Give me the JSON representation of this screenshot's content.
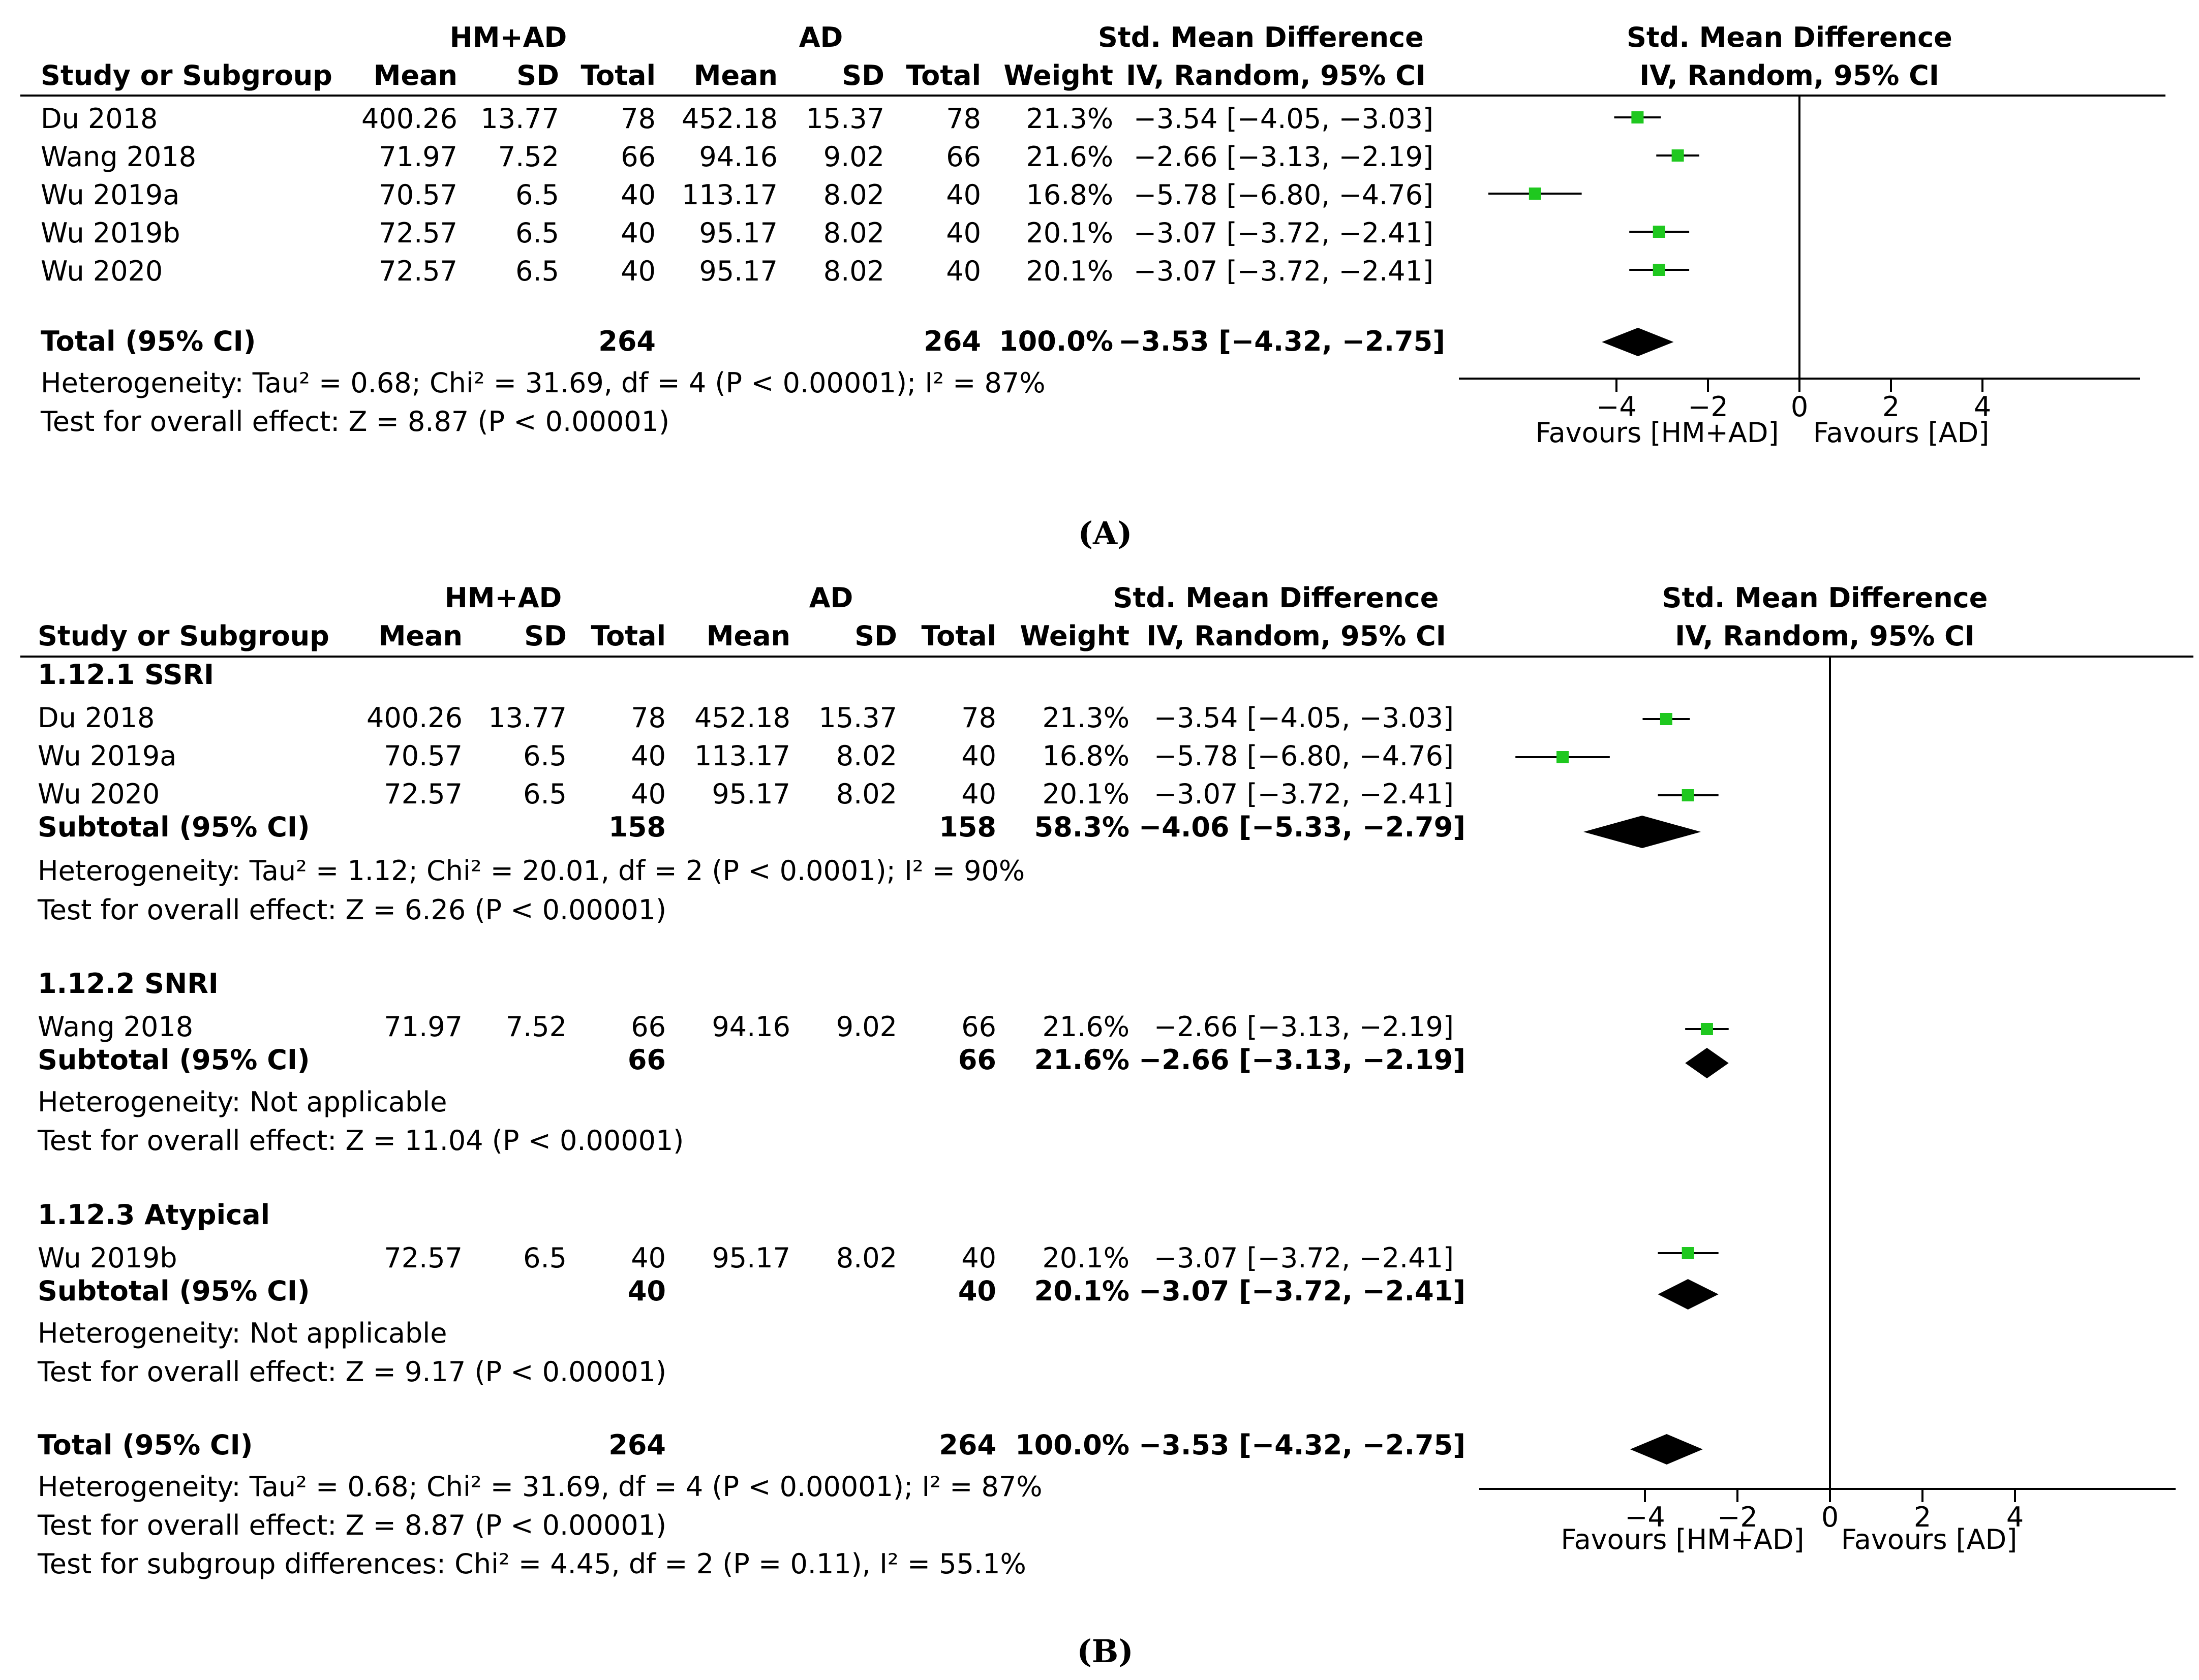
{
  "labels": {
    "group1": "HM+AD",
    "group2": "AD",
    "smd_header": "Std. Mean Difference",
    "ci_header": "IV, Random, 95% CI",
    "study_col": "Study or Subgroup",
    "mean_col": "Mean",
    "sd_col": "SD",
    "total_col": "Total",
    "weight_col": "Weight",
    "fav_left": "Favours [HM+AD]",
    "fav_right": "Favours [AD]"
  },
  "panelA": {
    "label": "(A)",
    "rows": [
      {
        "study": "Du 2018",
        "m1": "400.26",
        "sd1": "13.77",
        "n1": "78",
        "m2": "452.18",
        "sd2": "15.37",
        "n2": "78",
        "weight": "21.3%",
        "ci": "−3.54 [−4.05, −3.03]"
      },
      {
        "study": "Wang 2018",
        "m1": "71.97",
        "sd1": "7.52",
        "n1": "66",
        "m2": "94.16",
        "sd2": "9.02",
        "n2": "66",
        "weight": "21.6%",
        "ci": "−2.66 [−3.13, −2.19]"
      },
      {
        "study": "Wu 2019a",
        "m1": "70.57",
        "sd1": "6.5",
        "n1": "40",
        "m2": "113.17",
        "sd2": "8.02",
        "n2": "40",
        "weight": "16.8%",
        "ci": "−5.78 [−6.80, −4.76]"
      },
      {
        "study": "Wu 2019b",
        "m1": "72.57",
        "sd1": "6.5",
        "n1": "40",
        "m2": "95.17",
        "sd2": "8.02",
        "n2": "40",
        "weight": "20.1%",
        "ci": "−3.07 [−3.72, −2.41]"
      },
      {
        "study": "Wu 2020",
        "m1": "72.57",
        "sd1": "6.5",
        "n1": "40",
        "m2": "95.17",
        "sd2": "8.02",
        "n2": "40",
        "weight": "20.1%",
        "ci": "−3.07 [−3.72, −2.41]"
      }
    ],
    "total": {
      "label": "Total (95% CI)",
      "n1": "264",
      "n2": "264",
      "weight": "100.0%",
      "ci": "−3.53 [−4.32, −2.75]"
    },
    "het": "Heterogeneity: Tau² = 0.68; Chi² = 31.69, df = 4 (P < 0.00001); I² = 87%",
    "test": "Test for overall effect: Z = 8.87 (P < 0.00001)"
  },
  "panelB": {
    "label": "(B)",
    "g1": {
      "name": "1.12.1 SSRI",
      "rows": [
        {
          "study": "Du 2018",
          "m1": "400.26",
          "sd1": "13.77",
          "n1": "78",
          "m2": "452.18",
          "sd2": "15.37",
          "n2": "78",
          "weight": "21.3%",
          "ci": "−3.54 [−4.05, −3.03]"
        },
        {
          "study": "Wu 2019a",
          "m1": "70.57",
          "sd1": "6.5",
          "n1": "40",
          "m2": "113.17",
          "sd2": "8.02",
          "n2": "40",
          "weight": "16.8%",
          "ci": "−5.78 [−6.80, −4.76]"
        },
        {
          "study": "Wu 2020",
          "m1": "72.57",
          "sd1": "6.5",
          "n1": "40",
          "m2": "95.17",
          "sd2": "8.02",
          "n2": "40",
          "weight": "20.1%",
          "ci": "−3.07 [−3.72, −2.41]"
        }
      ],
      "subtotal": {
        "label": "Subtotal (95% CI)",
        "n1": "158",
        "n2": "158",
        "weight": "58.3%",
        "ci": "−4.06 [−5.33, −2.79]"
      },
      "het": "Heterogeneity: Tau² = 1.12; Chi² = 20.01, df = 2 (P < 0.0001); I² = 90%",
      "test": "Test for overall effect: Z = 6.26 (P < 0.00001)"
    },
    "g2": {
      "name": "1.12.2 SNRI",
      "rows": [
        {
          "study": "Wang 2018",
          "m1": "71.97",
          "sd1": "7.52",
          "n1": "66",
          "m2": "94.16",
          "sd2": "9.02",
          "n2": "66",
          "weight": "21.6%",
          "ci": "−2.66 [−3.13, −2.19]"
        }
      ],
      "subtotal": {
        "label": "Subtotal (95% CI)",
        "n1": "66",
        "n2": "66",
        "weight": "21.6%",
        "ci": "−2.66 [−3.13, −2.19]"
      },
      "het": "Heterogeneity: Not applicable",
      "test": "Test for overall effect: Z = 11.04 (P < 0.00001)"
    },
    "g3": {
      "name": "1.12.3 Atypical",
      "rows": [
        {
          "study": "Wu 2019b",
          "m1": "72.57",
          "sd1": "6.5",
          "n1": "40",
          "m2": "95.17",
          "sd2": "8.02",
          "n2": "40",
          "weight": "20.1%",
          "ci": "−3.07 [−3.72, −2.41]"
        }
      ],
      "subtotal": {
        "label": "Subtotal (95% CI)",
        "n1": "40",
        "n2": "40",
        "weight": "20.1%",
        "ci": "−3.07 [−3.72, −2.41]"
      },
      "het": "Heterogeneity: Not applicable",
      "test": "Test for overall effect: Z = 9.17 (P < 0.00001)"
    },
    "total": {
      "label": "Total (95% CI)",
      "n1": "264",
      "n2": "264",
      "weight": "100.0%",
      "ci": "−3.53 [−4.32, −2.75]"
    },
    "het": "Heterogeneity: Tau² = 0.68; Chi² = 31.69, df = 4 (P < 0.00001); I² = 87%",
    "test": "Test for overall effect: Z = 8.87 (P < 0.00001)",
    "subgroup_test": "Test for subgroup differences: Chi² = 4.45, df = 2 (P = 0.11), I² = 55.1%"
  },
  "chart_data": [
    {
      "type": "forest",
      "panel": "A",
      "title": "Std. Mean Difference",
      "subtitle": "IV, Random, 95% CI",
      "xlabel_left": "Favours [HM+AD]",
      "xlabel_right": "Favours [AD]",
      "xticks": [
        "−4",
        "−2",
        "0",
        "2",
        "4"
      ],
      "xtick_values": [
        -4,
        -2,
        0,
        2,
        4
      ],
      "xlim": [
        -7.5,
        7.5
      ],
      "studies": [
        {
          "name": "Du 2018",
          "est": -3.54,
          "lo": -4.05,
          "hi": -3.03,
          "weight": 21.3
        },
        {
          "name": "Wang 2018",
          "est": -2.66,
          "lo": -3.13,
          "hi": -2.19,
          "weight": 21.6
        },
        {
          "name": "Wu 2019a",
          "est": -5.78,
          "lo": -6.8,
          "hi": -4.76,
          "weight": 16.8
        },
        {
          "name": "Wu 2019b",
          "est": -3.07,
          "lo": -3.72,
          "hi": -2.41,
          "weight": 20.1
        },
        {
          "name": "Wu 2020",
          "est": -3.07,
          "lo": -3.72,
          "hi": -2.41,
          "weight": 20.1
        }
      ],
      "pooled": [
        {
          "name": "Total (95% CI)",
          "est": -3.53,
          "lo": -4.32,
          "hi": -2.75
        }
      ],
      "marker_color": "#1fc81f"
    },
    {
      "type": "forest",
      "panel": "B",
      "title": "Std. Mean Difference",
      "subtitle": "IV, Random, 95% CI",
      "xlabel_left": "Favours [HM+AD]",
      "xlabel_right": "Favours [AD]",
      "xticks": [
        "−4",
        "−2",
        "0",
        "2",
        "4"
      ],
      "xtick_values": [
        -4,
        -2,
        0,
        2,
        4
      ],
      "xlim": [
        -7.5,
        7.5
      ],
      "studies": [
        {
          "name": "Du 2018",
          "group": "1.12.1 SSRI",
          "est": -3.54,
          "lo": -4.05,
          "hi": -3.03,
          "weight": 21.3
        },
        {
          "name": "Wu 2019a",
          "group": "1.12.1 SSRI",
          "est": -5.78,
          "lo": -6.8,
          "hi": -4.76,
          "weight": 16.8
        },
        {
          "name": "Wu 2020",
          "group": "1.12.1 SSRI",
          "est": -3.07,
          "lo": -3.72,
          "hi": -2.41,
          "weight": 20.1
        },
        {
          "name": "Wang 2018",
          "group": "1.12.2 SNRI",
          "est": -2.66,
          "lo": -3.13,
          "hi": -2.19,
          "weight": 21.6
        },
        {
          "name": "Wu 2019b",
          "group": "1.12.3 Atypical",
          "est": -3.07,
          "lo": -3.72,
          "hi": -2.41,
          "weight": 20.1
        }
      ],
      "pooled": [
        {
          "name": "Subtotal SSRI",
          "est": -4.06,
          "lo": -5.33,
          "hi": -2.79
        },
        {
          "name": "Subtotal SNRI",
          "est": -2.66,
          "lo": -3.13,
          "hi": -2.19
        },
        {
          "name": "Subtotal Atypical",
          "est": -3.07,
          "lo": -3.72,
          "hi": -2.41
        },
        {
          "name": "Total (95% CI)",
          "est": -3.53,
          "lo": -4.32,
          "hi": -2.75
        }
      ],
      "marker_color": "#1fc81f"
    }
  ]
}
